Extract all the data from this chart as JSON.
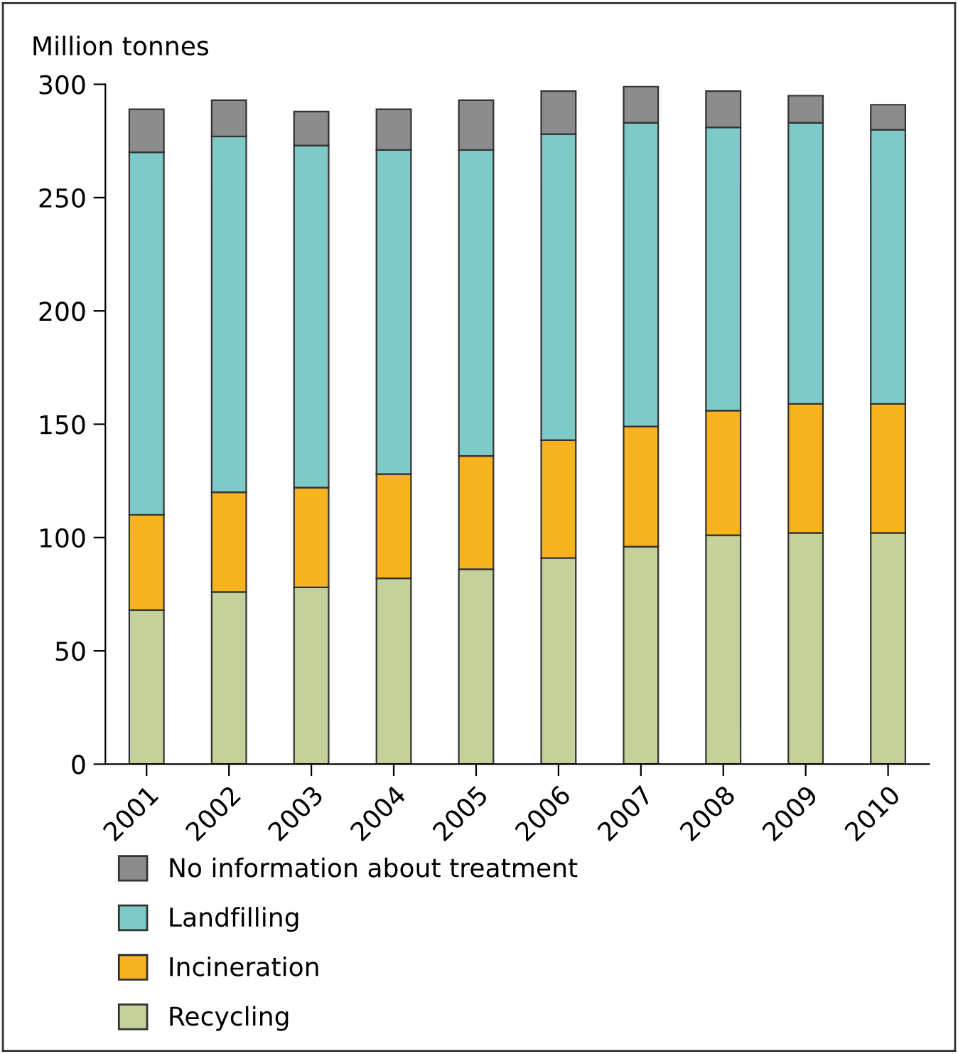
{
  "chart_data": {
    "type": "bar",
    "stacked": true,
    "ylabel": "Million tonnes",
    "categories": [
      "2001",
      "2002",
      "2003",
      "2004",
      "2005",
      "2006",
      "2007",
      "2008",
      "2009",
      "2010"
    ],
    "series": [
      {
        "name": "Recycling",
        "color": "#c4d19b",
        "values": [
          68,
          76,
          78,
          82,
          86,
          91,
          96,
          101,
          102,
          102
        ]
      },
      {
        "name": "Incineration",
        "color": "#f7b21f",
        "values": [
          42,
          44,
          44,
          46,
          50,
          52,
          53,
          55,
          57,
          57
        ]
      },
      {
        "name": "Landfilling",
        "color": "#7ecac8",
        "values": [
          160,
          157,
          151,
          143,
          135,
          135,
          134,
          125,
          124,
          121
        ]
      },
      {
        "name": "No information about treatment",
        "color": "#8c8c8c",
        "values": [
          19,
          16,
          15,
          18,
          22,
          19,
          16,
          16,
          12,
          11
        ]
      }
    ],
    "ylim": [
      0,
      300
    ],
    "yticks": [
      0,
      50,
      100,
      150,
      200,
      250,
      300
    ],
    "grid": false,
    "legend": "bottom"
  }
}
